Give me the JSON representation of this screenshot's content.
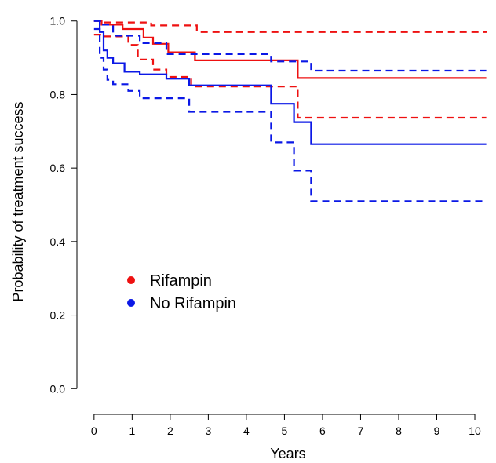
{
  "chart_data": {
    "type": "line",
    "title": "",
    "xlabel": "Years",
    "ylabel": "Probability of treatment success",
    "xlim": [
      -0.45,
      10.35
    ],
    "ylim": [
      -0.04,
      1.04
    ],
    "xticks": [
      0,
      1,
      2,
      3,
      4,
      5,
      6,
      7,
      8,
      9,
      10
    ],
    "yticks": [
      0.0,
      0.2,
      0.4,
      0.6,
      0.8,
      1.0
    ],
    "yticklabels": [
      "0.0",
      "0.2",
      "0.4",
      "0.6",
      "0.8",
      "1.0"
    ],
    "step": true,
    "grid": false,
    "legend_placement": "center-left",
    "series": [
      {
        "name": "Rifampin",
        "color": "#ee1111",
        "style": "solid",
        "x": [
          0,
          0.2,
          0.75,
          1.3,
          1.55,
          1.95,
          2.65,
          5.35,
          10.3
        ],
        "y": [
          1.0,
          0.99,
          0.978,
          0.955,
          0.938,
          0.915,
          0.893,
          0.845,
          0.845
        ]
      },
      {
        "name": "Rifampin lower CI",
        "color": "#ee1111",
        "style": "dashed",
        "x": [
          0,
          0.25,
          0.9,
          1.15,
          1.55,
          1.9,
          2.55,
          5.35,
          10.3
        ],
        "y": [
          0.963,
          0.958,
          0.935,
          0.895,
          0.868,
          0.848,
          0.822,
          0.737,
          0.737
        ]
      },
      {
        "name": "Rifampin upper CI",
        "color": "#ee1111",
        "style": "dashed",
        "x": [
          0,
          0.25,
          1.5,
          2.7,
          10.3
        ],
        "y": [
          1.0,
          0.996,
          0.988,
          0.97,
          0.968
        ]
      },
      {
        "name": "No Rifampin",
        "color": "#0b18e6",
        "style": "solid",
        "x": [
          0,
          0.15,
          0.25,
          0.35,
          0.5,
          0.8,
          1.2,
          1.9,
          2.5,
          4.65,
          5.25,
          5.7,
          10.3
        ],
        "y": [
          1.0,
          0.97,
          0.92,
          0.9,
          0.885,
          0.862,
          0.855,
          0.843,
          0.825,
          0.775,
          0.725,
          0.665,
          0.665
        ]
      },
      {
        "name": "No Rifampin lower CI",
        "color": "#0b18e6",
        "style": "dashed",
        "x": [
          0,
          0.15,
          0.25,
          0.35,
          0.5,
          0.9,
          1.2,
          2.5,
          4.65,
          5.25,
          5.7,
          10.3
        ],
        "y": [
          0.978,
          0.9,
          0.868,
          0.84,
          0.828,
          0.81,
          0.79,
          0.753,
          0.67,
          0.593,
          0.51,
          0.51
        ]
      },
      {
        "name": "No Rifampin upper CI",
        "color": "#0b18e6",
        "style": "dashed",
        "x": [
          0,
          0.2,
          0.5,
          1.2,
          1.9,
          4.65,
          5.7,
          10.3
        ],
        "y": [
          1.0,
          0.99,
          0.96,
          0.94,
          0.91,
          0.89,
          0.865,
          0.865
        ]
      }
    ],
    "legend": [
      {
        "label": "Rifampin",
        "color": "#ee1111"
      },
      {
        "label": "No Rifampin",
        "color": "#0b18e6"
      }
    ]
  }
}
